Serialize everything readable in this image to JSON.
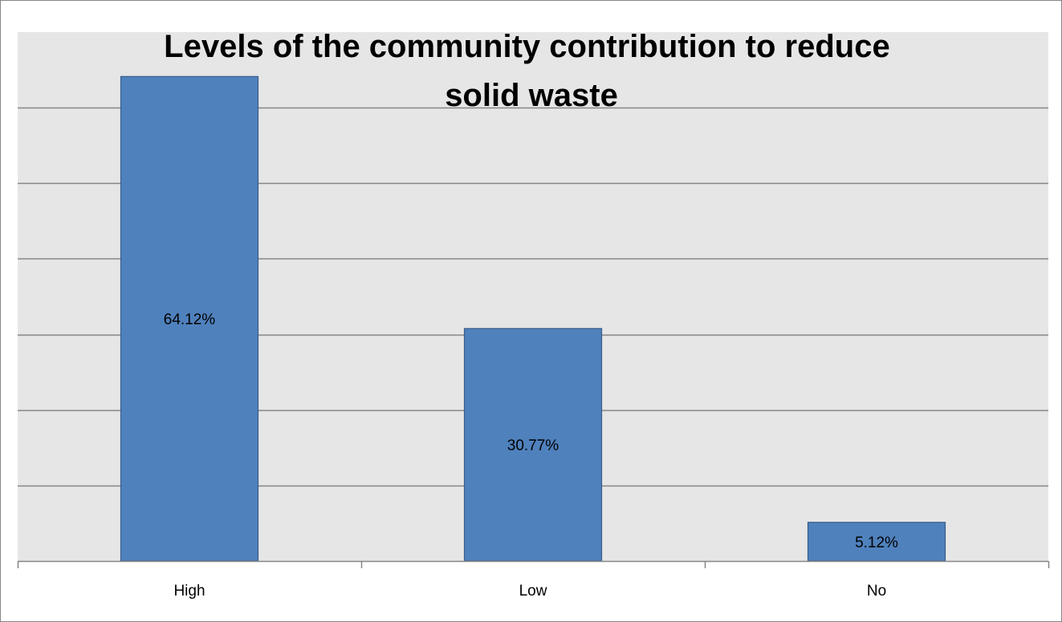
{
  "chart_data": {
    "type": "bar",
    "title": "Levels of the community contribution to reduce solid waste",
    "title_lines": [
      "Levels of the community contribution to reduce",
      "solid waste"
    ],
    "categories": [
      "High",
      "Low",
      "No"
    ],
    "values": [
      64.12,
      30.77,
      5.12
    ],
    "data_labels": [
      "64.12%",
      "30.77%",
      "5.12%"
    ],
    "xlabel": "",
    "ylabel": "",
    "ylim": [
      0,
      70
    ],
    "gridlines": true,
    "grid_step": 10,
    "legend": "none",
    "colors": {
      "bar_fill": "#4F81BD",
      "bar_stroke": "#385D8A",
      "plot_background": "#E6E6E6",
      "gridline": "#868686",
      "axis": "#868686",
      "frame": "#868686"
    }
  }
}
